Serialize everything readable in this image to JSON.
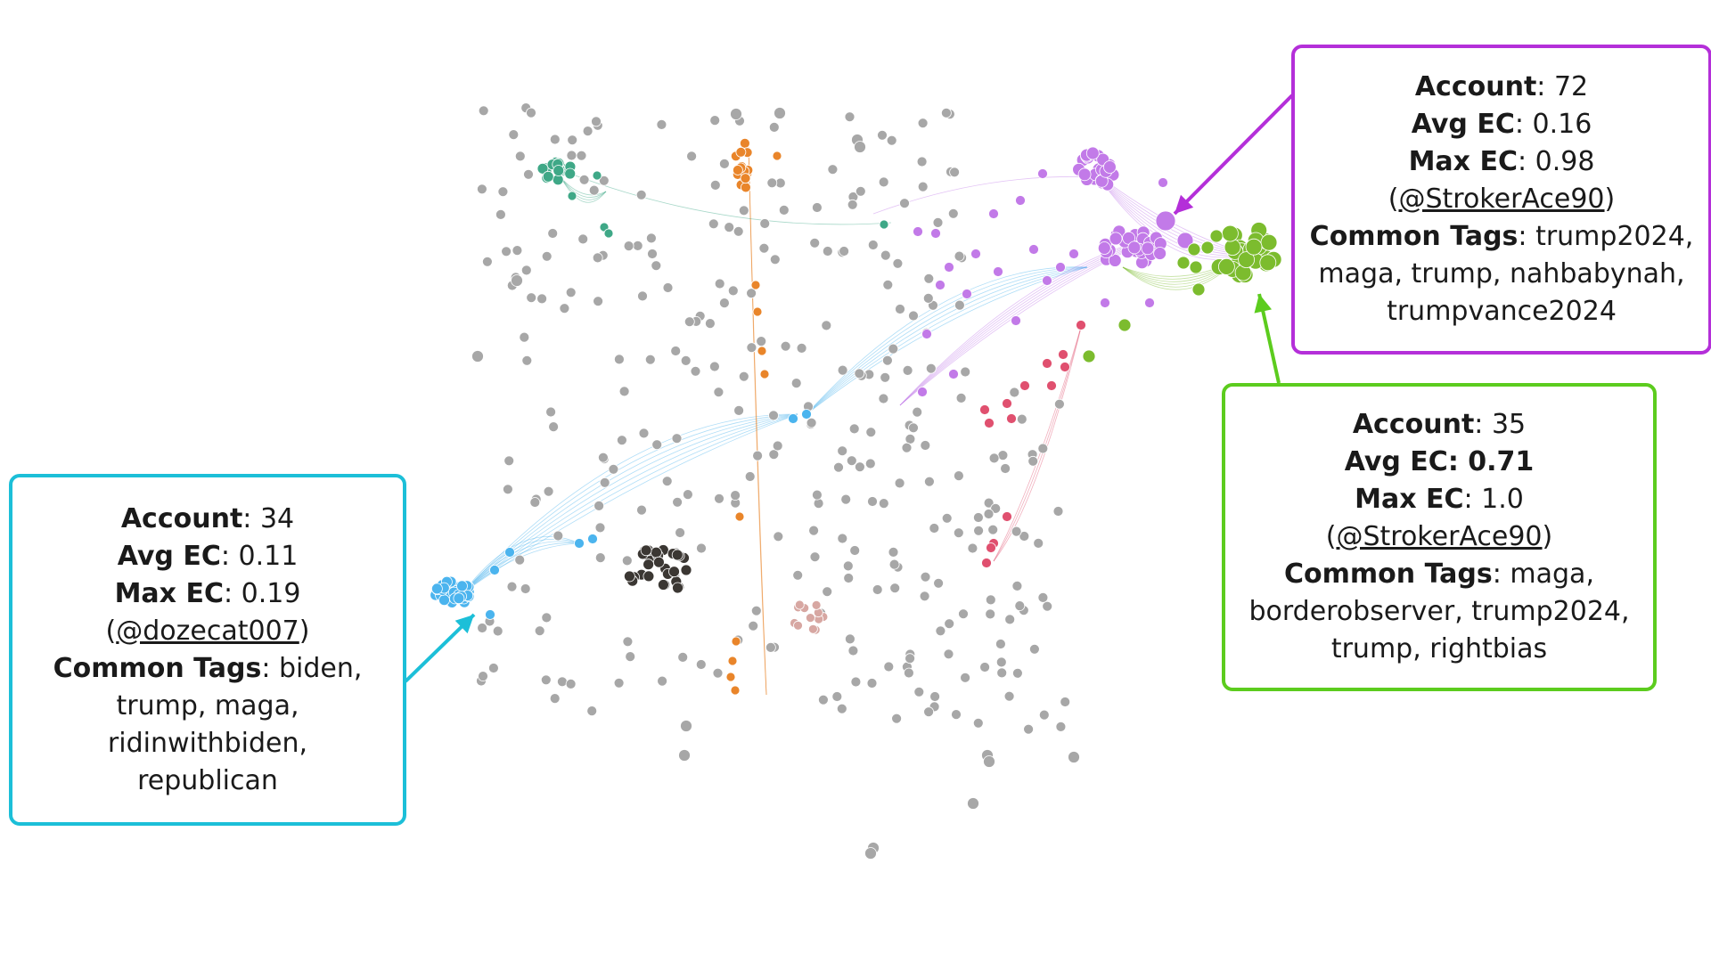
{
  "colors": {
    "blue": "#1cbfd8",
    "purple": "#b42fd9",
    "green": "#5ccc1e",
    "node_blue": "#4bb4ee",
    "node_purple": "#c27ae8",
    "node_green": "#7cbc2e",
    "node_teal": "#3fa887",
    "node_orange": "#e9852a",
    "node_pink": "#e0506f",
    "node_dark": "#3b3733",
    "node_gray": "#a7a7a7",
    "node_rose": "#d7a7a2"
  },
  "callouts": {
    "blue": {
      "account_label": "Account",
      "account_value": "34",
      "avg_label": "Avg EC",
      "avg_value": "0.11",
      "max_label": "Max EC",
      "max_value": "0.19",
      "max_handle": "@dozecat007",
      "tags_label": "Common Tags",
      "tags_line1": "biden,",
      "tags_line2": "trump, maga, ridinwithbiden,",
      "tags_line3": "republican"
    },
    "purple": {
      "account_label": "Account",
      "account_value": "72",
      "avg_label": "Avg EC",
      "avg_value": "0.16",
      "max_label": "Max EC",
      "max_value": "0.98",
      "max_handle": "@StrokerAce90",
      "tags_label": "Common Tags",
      "tags_line1": "trump2024,",
      "tags_line2": "maga, trump, nahbabynah,",
      "tags_line3": "trumpvance2024"
    },
    "green": {
      "account_label": "Account",
      "account_value": "35",
      "avg_label": "Avg EC",
      "avg_value": "0.71",
      "max_label": "Max EC",
      "max_value": "1.0",
      "max_handle": "@StrokerAce90",
      "tags_label": "Common Tags",
      "tags_line1": "maga,",
      "tags_line2": "borderobserver, trump2024,",
      "tags_line3": "trump, rightbias"
    }
  },
  "punct": {
    "colon": ": ",
    "open_paren": " (",
    "close_paren": ")"
  }
}
